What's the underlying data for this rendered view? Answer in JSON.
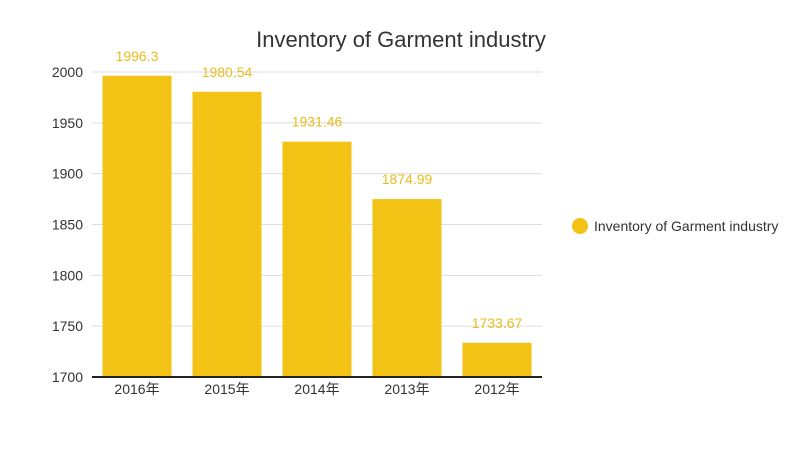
{
  "chart_data": {
    "type": "bar",
    "title": "Inventory of Garment industry",
    "categories": [
      "2016年",
      "2015年",
      "2014年",
      "2013年",
      "2012年"
    ],
    "series": [
      {
        "name": "Inventory of Garment industry",
        "values": [
          1996.3,
          1980.54,
          1931.46,
          1874.99,
          1733.67
        ],
        "data_labels": [
          "1996.3",
          "1980.54",
          "1931.46",
          "1874.99",
          "1733.67"
        ]
      }
    ],
    "xlabel": "",
    "ylabel": "",
    "ylim": [
      1700,
      2000
    ],
    "yticks": [
      1700,
      1750,
      1800,
      1850,
      1900,
      1950,
      2000
    ],
    "grid": true,
    "legend_position": "right",
    "colors": {
      "bar": "#f2c314",
      "data_label": "#e8bc1e",
      "grid": "#dddddd",
      "axis": "#222222"
    }
  }
}
